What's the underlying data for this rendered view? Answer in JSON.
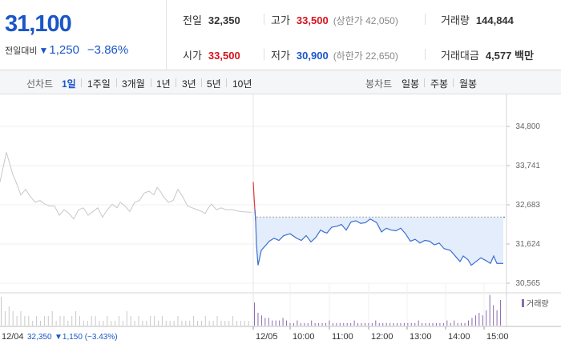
{
  "summary": {
    "price": "31,100",
    "change_label": "전일대비",
    "direction_glyph": "▼",
    "change_amount": "1,250",
    "change_percent": "−3.86%",
    "prev_close": {
      "label": "전일",
      "value": "32,350"
    },
    "high": {
      "label": "고가",
      "value": "33,500",
      "sub": "(상한가 42,050)"
    },
    "volume": {
      "label": "거래량",
      "value": "144,844"
    },
    "open": {
      "label": "시가",
      "value": "33,500"
    },
    "low": {
      "label": "저가",
      "value": "30,900",
      "sub": "(하한가 22,650)"
    },
    "amount": {
      "label": "거래대금",
      "value": "4,577 백만"
    }
  },
  "toolbar": {
    "line_label": "선차트",
    "line_periods": [
      "1일",
      "1주일",
      "3개월",
      "1년",
      "3년",
      "5년",
      "10년"
    ],
    "active_period": "1일",
    "candle_label": "봉차트",
    "candle_periods": [
      "일봉",
      "주봉",
      "월봉"
    ]
  },
  "chart_data": {
    "type": "line",
    "y_ticks": [
      "34,800",
      "33,741",
      "32,683",
      "31,624",
      "30,565"
    ],
    "ylim": [
      30565,
      34800
    ],
    "x_ticks": [
      "12/05",
      "10:00",
      "11:00",
      "12:00",
      "13:00",
      "14:00",
      "15:00"
    ],
    "prev_day_label": "12/04",
    "prev_day_close": "32,350",
    "prev_day_change": "▼1,150 (−3.43%)",
    "volume_legend": "거래량",
    "colors": {
      "today": "#3b6fd0",
      "fill": "#e3edfb",
      "prev": "#c8c8c8",
      "open_up": "#e03a3a",
      "volume": "#8a6ab0",
      "volume_prev": "#c9c9c9"
    },
    "today": {
      "reference": 32350,
      "points": [
        [
          0,
          33300
        ],
        [
          1,
          32900
        ],
        [
          2,
          32550
        ],
        [
          3,
          32250
        ],
        [
          4,
          31600
        ],
        [
          6,
          31050
        ],
        [
          8,
          31250
        ],
        [
          10,
          31450
        ],
        [
          14,
          31550
        ],
        [
          20,
          31700
        ],
        [
          26,
          31780
        ],
        [
          32,
          31720
        ],
        [
          38,
          31850
        ],
        [
          46,
          31900
        ],
        [
          54,
          31780
        ],
        [
          60,
          31720
        ],
        [
          66,
          31850
        ],
        [
          72,
          31680
        ],
        [
          78,
          31800
        ],
        [
          84,
          32000
        ],
        [
          88,
          31950
        ],
        [
          92,
          31920
        ],
        [
          98,
          32080
        ],
        [
          104,
          32100
        ],
        [
          110,
          32150
        ],
        [
          116,
          32000
        ],
        [
          122,
          32220
        ],
        [
          128,
          32250
        ],
        [
          134,
          32180
        ],
        [
          140,
          32200
        ],
        [
          146,
          32300
        ],
        [
          150,
          32250
        ],
        [
          154,
          32200
        ],
        [
          160,
          31950
        ],
        [
          166,
          32050
        ],
        [
          172,
          32000
        ],
        [
          178,
          31980
        ],
        [
          184,
          32050
        ],
        [
          190,
          31900
        ],
        [
          196,
          31700
        ],
        [
          202,
          31750
        ],
        [
          208,
          31650
        ],
        [
          214,
          31720
        ],
        [
          220,
          31700
        ],
        [
          226,
          31600
        ],
        [
          232,
          31650
        ],
        [
          238,
          31500
        ],
        [
          246,
          31450
        ],
        [
          254,
          31250
        ],
        [
          258,
          31150
        ],
        [
          262,
          31300
        ],
        [
          268,
          31200
        ],
        [
          272,
          31050
        ],
        [
          278,
          31150
        ],
        [
          284,
          31250
        ],
        [
          290,
          31180
        ],
        [
          296,
          31100
        ],
        [
          300,
          31300
        ],
        [
          304,
          31100
        ],
        [
          312,
          31100
        ]
      ]
    },
    "prev": {
      "points": [
        [
          0,
          33300
        ],
        [
          4,
          33700
        ],
        [
          8,
          34100
        ],
        [
          12,
          33800
        ],
        [
          16,
          33500
        ],
        [
          20,
          33300
        ],
        [
          26,
          32950
        ],
        [
          32,
          33100
        ],
        [
          38,
          32900
        ],
        [
          44,
          32750
        ],
        [
          50,
          32800
        ],
        [
          56,
          32700
        ],
        [
          62,
          32650
        ],
        [
          68,
          32650
        ],
        [
          74,
          32400
        ],
        [
          80,
          32550
        ],
        [
          86,
          32450
        ],
        [
          92,
          32300
        ],
        [
          98,
          32550
        ],
        [
          104,
          32600
        ],
        [
          110,
          32400
        ],
        [
          116,
          32500
        ],
        [
          122,
          32600
        ],
        [
          128,
          32350
        ],
        [
          134,
          32550
        ],
        [
          140,
          32700
        ],
        [
          146,
          32600
        ],
        [
          150,
          32750
        ],
        [
          156,
          32650
        ],
        [
          162,
          32500
        ],
        [
          168,
          32750
        ],
        [
          174,
          32800
        ],
        [
          180,
          33000
        ],
        [
          186,
          33050
        ],
        [
          192,
          32950
        ],
        [
          196,
          33150
        ],
        [
          200,
          33050
        ],
        [
          204,
          32900
        ],
        [
          210,
          32750
        ],
        [
          216,
          32800
        ],
        [
          222,
          33100
        ],
        [
          228,
          32900
        ],
        [
          234,
          32650
        ],
        [
          240,
          32600
        ],
        [
          246,
          32550
        ],
        [
          252,
          32500
        ],
        [
          256,
          32450
        ],
        [
          260,
          32600
        ],
        [
          264,
          32700
        ],
        [
          270,
          32550
        ],
        [
          276,
          32600
        ],
        [
          282,
          32550
        ],
        [
          290,
          32550
        ],
        [
          300,
          32500
        ],
        [
          314,
          32480
        ]
      ]
    },
    "volume": {
      "prev": [
        6,
        3,
        4,
        3,
        2,
        3,
        2,
        2,
        1,
        2,
        1,
        2,
        2,
        3,
        1,
        2,
        2,
        1,
        2,
        3,
        2,
        1,
        1,
        2,
        2,
        1,
        1,
        2,
        1,
        1,
        2,
        1,
        3,
        2,
        1,
        2,
        1,
        1,
        2,
        2,
        1,
        2,
        1,
        1,
        1,
        2,
        1,
        1,
        1,
        2,
        1,
        1,
        2,
        1,
        1,
        2,
        1,
        1,
        1,
        2,
        1,
        1,
        1,
        1
      ],
      "today": [
        9,
        5,
        4,
        3,
        3,
        2,
        2,
        2,
        3,
        2,
        1,
        1,
        2,
        1,
        1,
        1,
        2,
        1,
        1,
        1,
        1,
        2,
        1,
        1,
        1,
        1,
        1,
        1,
        2,
        1,
        1,
        1,
        1,
        1,
        2,
        1,
        1,
        1,
        1,
        1,
        1,
        1,
        1,
        1,
        1,
        1,
        2,
        1,
        1,
        1,
        1,
        1,
        1,
        1,
        2,
        1,
        2,
        1,
        1,
        1,
        2,
        3,
        4,
        5,
        4,
        6,
        12,
        8,
        6,
        10
      ]
    }
  }
}
